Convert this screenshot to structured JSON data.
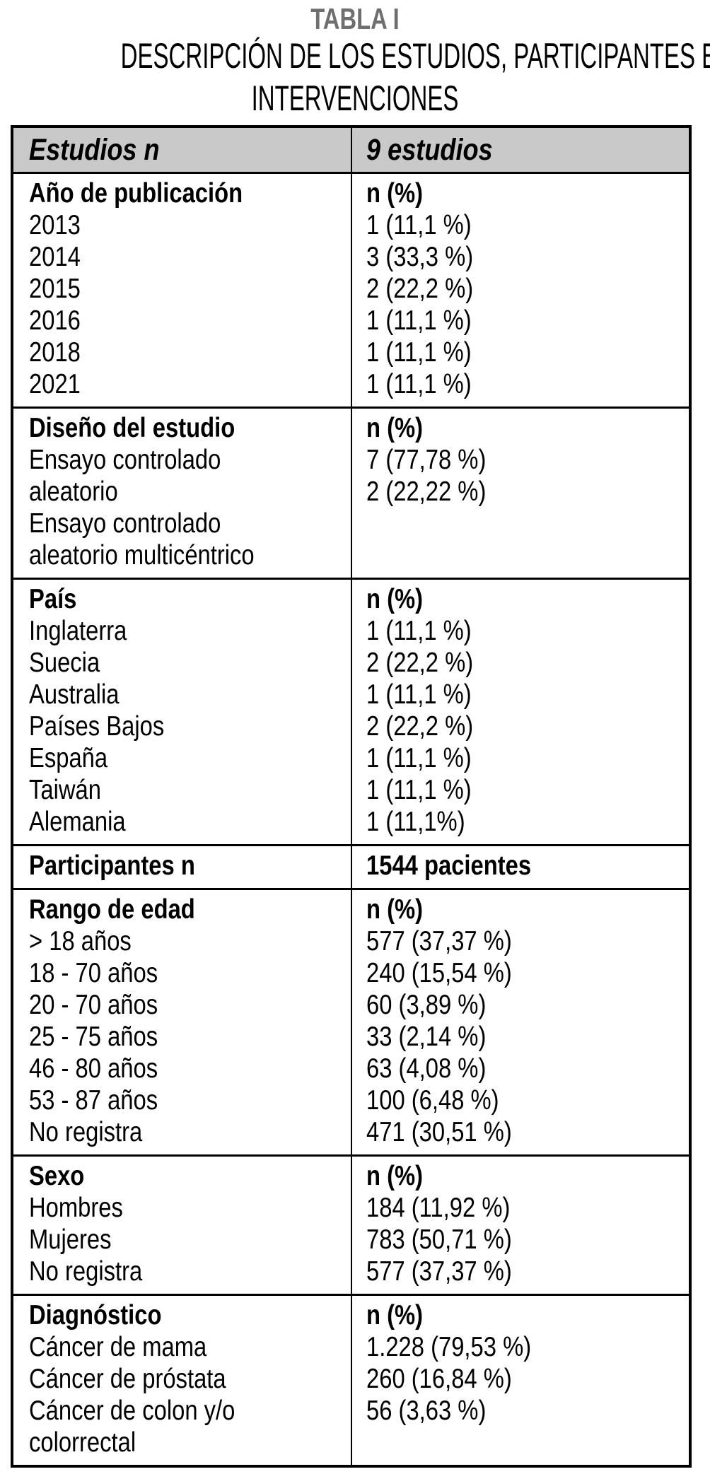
{
  "title": "TABLA I",
  "subtitle_lines": [
    "DESCRIPCIÓN DE LOS ESTUDIOS, PARTICIPANTES E",
    "INTERVENCIONES"
  ],
  "colors": {
    "title_gray": "#6f6f6f",
    "header_row_bg": "#c9c9c9",
    "border": "#000000",
    "text": "#000000"
  },
  "table": {
    "header": {
      "left": "Estudios n",
      "right": "9 estudios"
    },
    "sections": [
      {
        "name": "Año de publicación",
        "left": [
          "Año de publicación",
          "2013",
          "2014",
          "2015",
          "2016",
          "2018",
          "2021"
        ],
        "right": [
          "n (%)",
          "1 (11,1 %)",
          "3 (33,3 %)",
          "2 (22,2 %)",
          "1 (11,1 %)",
          "1 (11,1 %)",
          "1 (11,1 %)"
        ]
      },
      {
        "name": "Diseño del estudio",
        "left": [
          "Diseño del estudio",
          "Ensayo controlado",
          "aleatorio",
          "Ensayo controlado",
          "aleatorio multicéntrico"
        ],
        "right": [
          "n (%)",
          "7 (77,78 %)",
          "2 (22,22 %)"
        ]
      },
      {
        "name": "País",
        "left": [
          "País",
          "Inglaterra",
          "Suecia",
          "Australia",
          "Países Bajos",
          "España",
          "Taiwán",
          "Alemania"
        ],
        "right": [
          "n (%)",
          "1 (11,1 %)",
          "2 (22,2 %)",
          "1 (11,1 %)",
          "2 (22,2 %)",
          "1 (11,1 %)",
          "1 (11,1 %)",
          "1 (11,1%)"
        ]
      },
      {
        "name": "Participantes n",
        "left": [
          "Participantes n"
        ],
        "right": [
          "1544 pacientes"
        ]
      },
      {
        "name": "Rango de edad",
        "left": [
          "Rango de edad",
          "> 18 años",
          "18 - 70 años",
          "20 - 70 años",
          "25 - 75 años",
          "46 - 80 años",
          "53 - 87 años",
          "No registra"
        ],
        "right": [
          "n (%)",
          "577 (37,37 %)",
          "240 (15,54 %)",
          "60 (3,89 %)",
          "33 (2,14 %)",
          "63 (4,08 %)",
          "100 (6,48 %)",
          "471 (30,51 %)"
        ]
      },
      {
        "name": "Sexo",
        "left": [
          "Sexo",
          "Hombres",
          "Mujeres",
          "No registra"
        ],
        "right": [
          "n (%)",
          "184 (11,92 %)",
          "783 (50,71 %)",
          "577 (37,37 %)"
        ]
      },
      {
        "name": "Diagnóstico",
        "left": [
          "Diagnóstico",
          "Cáncer de mama",
          "Cáncer de próstata",
          "Cáncer de colon y/o",
          "colorrectal"
        ],
        "right": [
          "n (%)",
          "1.228 (79,53 %)",
          "260 (16,84 %)",
          "56 (3,63 %)"
        ]
      }
    ]
  }
}
